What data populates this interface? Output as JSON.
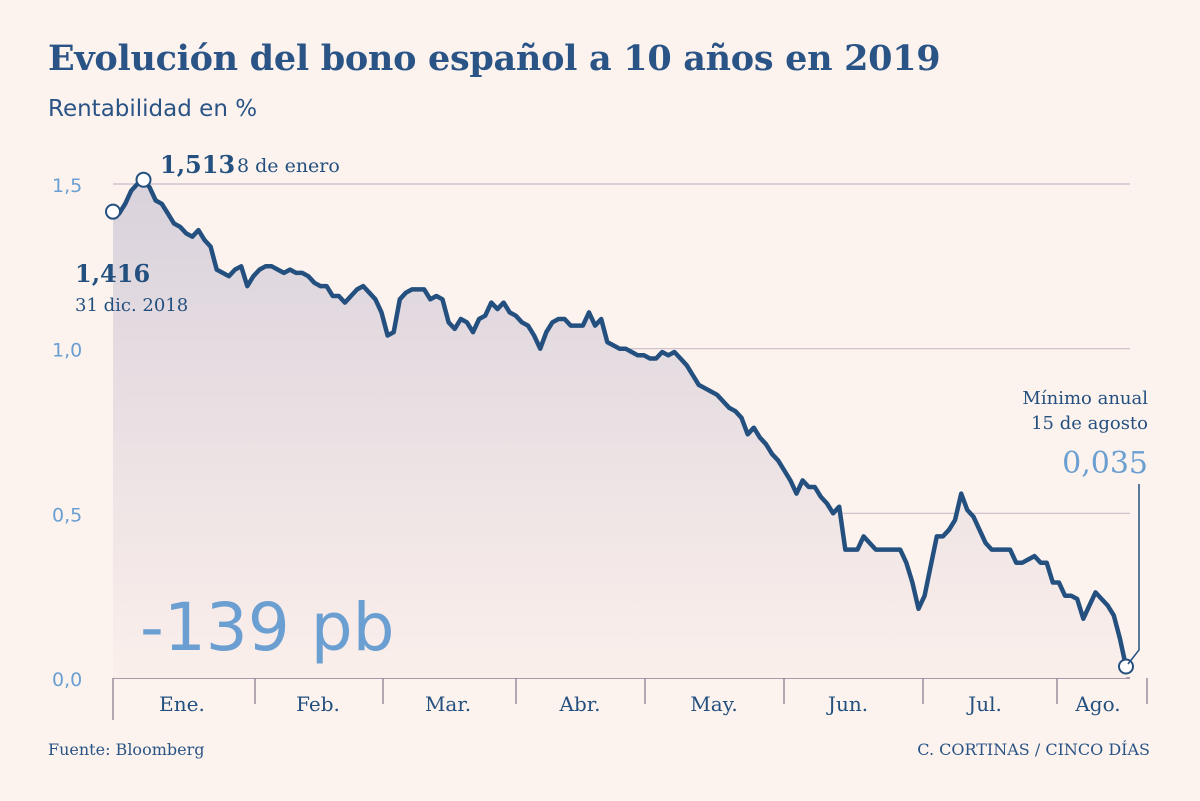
{
  "title": "Evolución del bono español a 10 años en 2019",
  "subtitle": "Rentabilidad en %",
  "source": "Fuente: Bloomberg",
  "credit": "C. CORTINAS / CINCO DÍAS",
  "colors": {
    "background": "#fcf3ee",
    "line": "#24507f",
    "dark_text": "#2b5486",
    "accent": "#6b9fd1",
    "grid": "#c9bcc8"
  },
  "chart_data": {
    "type": "area",
    "ylim": [
      0,
      1.5
    ],
    "y_ticks": [
      "0,0",
      "0,5",
      "1,0",
      "1,5"
    ],
    "y_tick_values": [
      0,
      0.5,
      1.0,
      1.5
    ],
    "months": [
      "Ene.",
      "Feb.",
      "Mar.",
      "Abr.",
      "May.",
      "Jun.",
      "Jul.",
      "Ago."
    ],
    "grid": true,
    "values": [
      1.416,
      1.41,
      1.44,
      1.48,
      1.5,
      1.513,
      1.49,
      1.45,
      1.44,
      1.41,
      1.38,
      1.37,
      1.35,
      1.34,
      1.36,
      1.33,
      1.31,
      1.24,
      1.23,
      1.22,
      1.24,
      1.25,
      1.19,
      1.22,
      1.24,
      1.25,
      1.25,
      1.24,
      1.23,
      1.24,
      1.23,
      1.23,
      1.22,
      1.2,
      1.19,
      1.19,
      1.16,
      1.16,
      1.14,
      1.16,
      1.18,
      1.19,
      1.17,
      1.15,
      1.11,
      1.04,
      1.05,
      1.15,
      1.17,
      1.18,
      1.18,
      1.18,
      1.15,
      1.16,
      1.15,
      1.08,
      1.06,
      1.09,
      1.08,
      1.05,
      1.09,
      1.1,
      1.14,
      1.12,
      1.14,
      1.11,
      1.1,
      1.08,
      1.07,
      1.04,
      1.0,
      1.05,
      1.08,
      1.09,
      1.09,
      1.07,
      1.07,
      1.07,
      1.11,
      1.07,
      1.09,
      1.02,
      1.01,
      1.0,
      1.0,
      0.99,
      0.98,
      0.98,
      0.97,
      0.97,
      0.99,
      0.98,
      0.99,
      0.97,
      0.95,
      0.92,
      0.89,
      0.88,
      0.87,
      0.86,
      0.84,
      0.82,
      0.81,
      0.79,
      0.74,
      0.76,
      0.73,
      0.71,
      0.68,
      0.66,
      0.63,
      0.6,
      0.56,
      0.6,
      0.58,
      0.58,
      0.55,
      0.53,
      0.5,
      0.52,
      0.39,
      0.39,
      0.39,
      0.43,
      0.41,
      0.39,
      0.39,
      0.39,
      0.39,
      0.39,
      0.35,
      0.29,
      0.21,
      0.25,
      0.34,
      0.43,
      0.43,
      0.45,
      0.48,
      0.56,
      0.51,
      0.49,
      0.45,
      0.41,
      0.39,
      0.39,
      0.39,
      0.39,
      0.35,
      0.35,
      0.36,
      0.37,
      0.35,
      0.35,
      0.29,
      0.29,
      0.25,
      0.25,
      0.24,
      0.18,
      0.22,
      0.26,
      0.24,
      0.22,
      0.19,
      0.12,
      0.035
    ],
    "annotations": {
      "start": {
        "value": "1,416",
        "label": "31 dic. 2018"
      },
      "max": {
        "value": "1,513",
        "label": "8 de enero"
      },
      "min": {
        "line1": "Mínimo anual",
        "line2": "15 de agosto",
        "value": "0,035"
      },
      "change": "-139 pb"
    }
  }
}
